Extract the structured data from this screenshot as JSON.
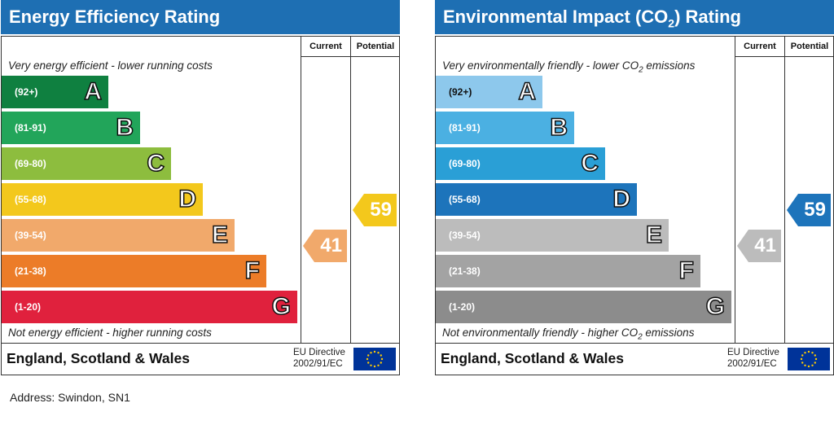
{
  "energy": {
    "title": "Energy Efficiency Rating",
    "col_current": "Current",
    "col_potential": "Potential",
    "top_note": "Very energy efficient - lower running costs",
    "bottom_note": "Not energy efficient - higher running costs",
    "bands": [
      {
        "range": "(92+)",
        "letter": "A",
        "color": "#0f8040"
      },
      {
        "range": "(81-91)",
        "letter": "B",
        "color": "#22a55a"
      },
      {
        "range": "(69-80)",
        "letter": "C",
        "color": "#8dbd3e"
      },
      {
        "range": "(55-68)",
        "letter": "D",
        "color": "#f3c81c"
      },
      {
        "range": "(39-54)",
        "letter": "E",
        "color": "#f1a96b"
      },
      {
        "range": "(21-38)",
        "letter": "F",
        "color": "#ec7c28"
      },
      {
        "range": "(1-20)",
        "letter": "G",
        "color": "#e0213d"
      }
    ],
    "current_value": "41",
    "current_color": "#f1a96b",
    "potential_value": "59",
    "potential_color": "#f3c81c",
    "footer": "England, Scotland & Wales",
    "directive_line1": "EU Directive",
    "directive_line2": "2002/91/EC"
  },
  "environment": {
    "title_main": "Environmental Impact (CO",
    "title_sub": "2",
    "title_end": ") Rating",
    "col_current": "Current",
    "col_potential": "Potential",
    "top_note_main": "Very environmentally friendly - lower CO",
    "top_note_sub": "2",
    "top_note_end": " emissions",
    "bottom_note_main": "Not environmentally friendly - higher CO",
    "bottom_note_sub": "2",
    "bottom_note_end": " emissions",
    "bands": [
      {
        "range": "(92+)",
        "letter": "A",
        "color": "#8dc8ec"
      },
      {
        "range": "(81-91)",
        "letter": "B",
        "color": "#4bb0e2"
      },
      {
        "range": "(69-80)",
        "letter": "C",
        "color": "#2a9fd6"
      },
      {
        "range": "(55-68)",
        "letter": "D",
        "color": "#1d74bb"
      },
      {
        "range": "(39-54)",
        "letter": "E",
        "color": "#bcbcbc"
      },
      {
        "range": "(21-38)",
        "letter": "F",
        "color": "#a3a3a3"
      },
      {
        "range": "(1-20)",
        "letter": "G",
        "color": "#8c8c8c"
      }
    ],
    "current_value": "41",
    "current_color": "#bcbcbc",
    "potential_value": "59",
    "potential_color": "#1d74bb",
    "footer": "England, Scotland & Wales",
    "directive_line1": "EU Directive",
    "directive_line2": "2002/91/EC"
  },
  "address": "Address: Swindon, SN1"
}
